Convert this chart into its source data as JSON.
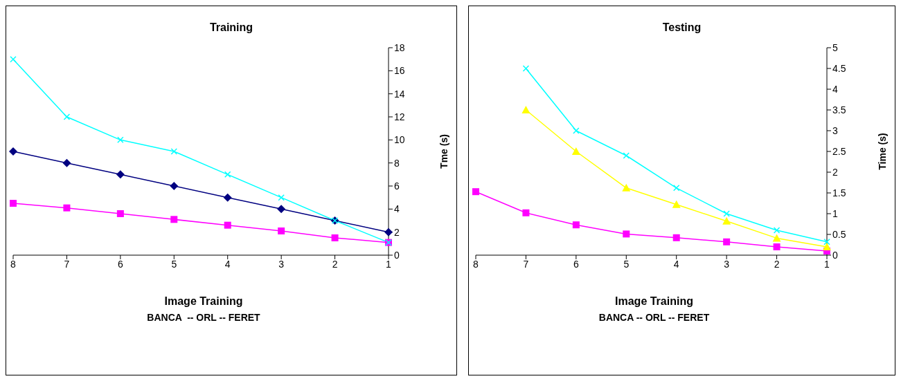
{
  "chart_data": [
    {
      "type": "line",
      "title": "Training",
      "xlabel": "Image Training",
      "ylabel": "Tme (s)",
      "annotations": [
        "BANCA  -- ORL -- FERET"
      ],
      "categories": [
        "8",
        "7",
        "6",
        "5",
        "4",
        "3",
        "2",
        "1"
      ],
      "series": [
        {
          "color": "#00ffff",
          "marker": "cross",
          "values": [
            17,
            12,
            10,
            9,
            7,
            5,
            3,
            1.1
          ]
        },
        {
          "color": "#000080",
          "marker": "diamond",
          "values": [
            9,
            8,
            7,
            6,
            5,
            4,
            3,
            2
          ]
        },
        {
          "color": "#ff00ff",
          "marker": "square",
          "values": [
            4.5,
            4.1,
            3.6,
            3.1,
            2.6,
            2.1,
            1.5,
            1.1
          ]
        }
      ],
      "ylim": [
        0,
        18
      ],
      "yticks": [
        0,
        2,
        4,
        6,
        8,
        10,
        12,
        14,
        16,
        18
      ],
      "grid": false,
      "legend": false,
      "line_style": "solid"
    },
    {
      "type": "line",
      "title": "Testing",
      "xlabel": "Image Training",
      "ylabel": "Time (s)",
      "annotations": [
        "BANCA -- ORL -- FERET"
      ],
      "categories": [
        "8",
        "7",
        "6",
        "5",
        "4",
        "3",
        "2",
        "1"
      ],
      "series": [
        {
          "color": "#00ffff",
          "marker": "cross",
          "values": [
            null,
            4.5,
            3.0,
            2.4,
            1.62,
            1.0,
            0.6,
            0.32
          ]
        },
        {
          "color": "#ffff00",
          "marker": "triangle",
          "values": [
            null,
            3.5,
            2.5,
            1.62,
            1.22,
            0.82,
            0.41,
            0.2
          ]
        },
        {
          "color": "#ff00ff",
          "marker": "square",
          "values": [
            1.53,
            1.02,
            0.73,
            0.51,
            0.42,
            0.32,
            0.2,
            0.1
          ]
        }
      ],
      "ylim": [
        0,
        5
      ],
      "yticks": [
        0,
        0.5,
        1,
        1.5,
        2,
        2.5,
        3,
        3.5,
        4,
        4.5,
        5
      ],
      "grid": false,
      "legend": false,
      "line_style": "solid"
    }
  ]
}
